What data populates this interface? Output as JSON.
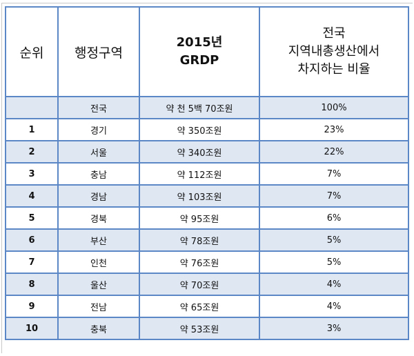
{
  "table": {
    "headers": {
      "rank": "순위",
      "region": "행정구역",
      "grdp_lines": [
        "2015년",
        "GRDP"
      ],
      "share_lines": [
        "전국",
        "지역내총생산에서",
        "차지하는 비율"
      ]
    },
    "rows": [
      {
        "rank": "",
        "region": "전국",
        "grdp": "약 천 5백 70조원",
        "share": "100%"
      },
      {
        "rank": "1",
        "region": "경기",
        "grdp": "약 350조원",
        "share": "23%"
      },
      {
        "rank": "2",
        "region": "서울",
        "grdp": "약 340조원",
        "share": "22%"
      },
      {
        "rank": "3",
        "region": "충남",
        "grdp": "약 112조원",
        "share": "7%"
      },
      {
        "rank": "4",
        "region": "경남",
        "grdp": "약 103조원",
        "share": "7%"
      },
      {
        "rank": "5",
        "region": "경북",
        "grdp": "약 95조원",
        "share": "6%"
      },
      {
        "rank": "6",
        "region": "부산",
        "grdp": "약 78조원",
        "share": "5%"
      },
      {
        "rank": "7",
        "region": "인천",
        "grdp": "약 76조원",
        "share": "5%"
      },
      {
        "rank": "8",
        "region": "울산",
        "grdp": "약 70조원",
        "share": "4%"
      },
      {
        "rank": "9",
        "region": "전남",
        "grdp": "약 65조원",
        "share": "4%"
      },
      {
        "rank": "10",
        "region": "충북",
        "grdp": "약 53조원",
        "share": "3%"
      }
    ]
  }
}
